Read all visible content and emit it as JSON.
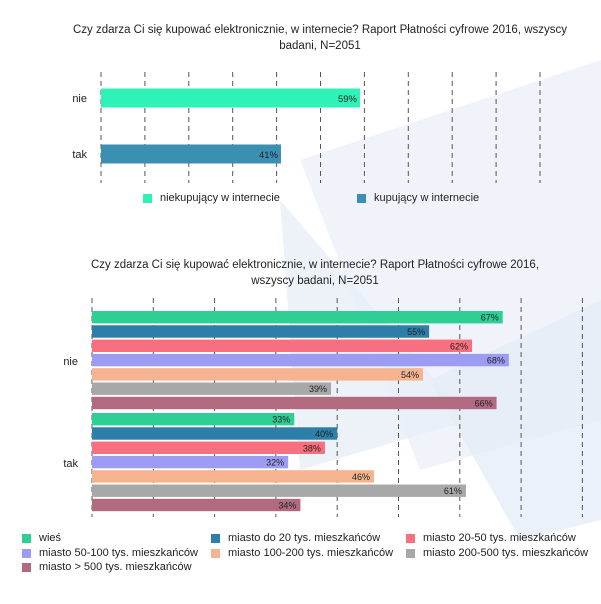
{
  "chart_data": [
    {
      "type": "bar",
      "orientation": "horizontal",
      "title": "Czy zdarza Ci się kupować elektronicznie, w internecie? Raport Płatności cyfrowe 2016, wszyscy badani, N=2051",
      "title_lines": [
        "Czy zdarza Ci się kupować elektronicznie, w internecie? Raport Płatności cyfrowe 2016, wszyscy",
        "badani, N=2051"
      ],
      "categories": [
        "nie",
        "tak"
      ],
      "xlim": [
        0,
        100
      ],
      "grid": true,
      "legend_position": "bottom",
      "series": [
        {
          "name": "niekupujący w internecie",
          "color": "#2ef2b8",
          "category": "nie",
          "value": 59,
          "label": "59%"
        },
        {
          "name": "kupujący w internecie",
          "color": "#3a8fb3",
          "category": "tak",
          "value": 41,
          "label": "41%"
        }
      ]
    },
    {
      "type": "bar",
      "orientation": "horizontal",
      "title": "Czy zdarza Ci się kupować elektronicznie, w internecie? Raport Płatności cyfrowe 2016, wszyscy badani, N=2051",
      "title_lines": [
        "Czy zdarza Ci się kupować elektronicznie, w internecie? Raport Płatności cyfrowe 2016,",
        "wszyscy badani, N=2051"
      ],
      "categories": [
        "nie",
        "tak"
      ],
      "xlim": [
        0,
        100
      ],
      "grid": true,
      "legend_position": "bottom",
      "series": [
        {
          "name": "wieś",
          "color": "#2ecf94",
          "values": [
            67,
            33
          ],
          "labels": [
            "67%",
            "33%"
          ]
        },
        {
          "name": "miasto do 20 tys. mieszkańców",
          "color": "#2d7ea8",
          "values": [
            55,
            40
          ],
          "labels": [
            "55%",
            "40%"
          ]
        },
        {
          "name": "miasto 20-50 tys. mieszkańców",
          "color": "#f7707f",
          "values": [
            62,
            38
          ],
          "labels": [
            "62%",
            "38%"
          ]
        },
        {
          "name": "miasto 50-100 tys. mieszkańców",
          "color": "#9b9cf2",
          "values": [
            68,
            32
          ],
          "labels": [
            "68%",
            "32%"
          ]
        },
        {
          "name": "miasto 100-200 tys. mieszkańców",
          "color": "#f5b48f",
          "values": [
            54,
            46
          ],
          "labels": [
            "54%",
            "46%"
          ]
        },
        {
          "name": "miasto 200-500 tys.  mieszkańców",
          "color": "#a8a8a8",
          "values": [
            39,
            61
          ],
          "labels": [
            "39%",
            "61%"
          ]
        },
        {
          "name": "miasto > 500 tys. mieszkańców",
          "color": "#b26b7e",
          "values": [
            66,
            34
          ],
          "labels": [
            "66%",
            "34%"
          ]
        }
      ]
    }
  ]
}
